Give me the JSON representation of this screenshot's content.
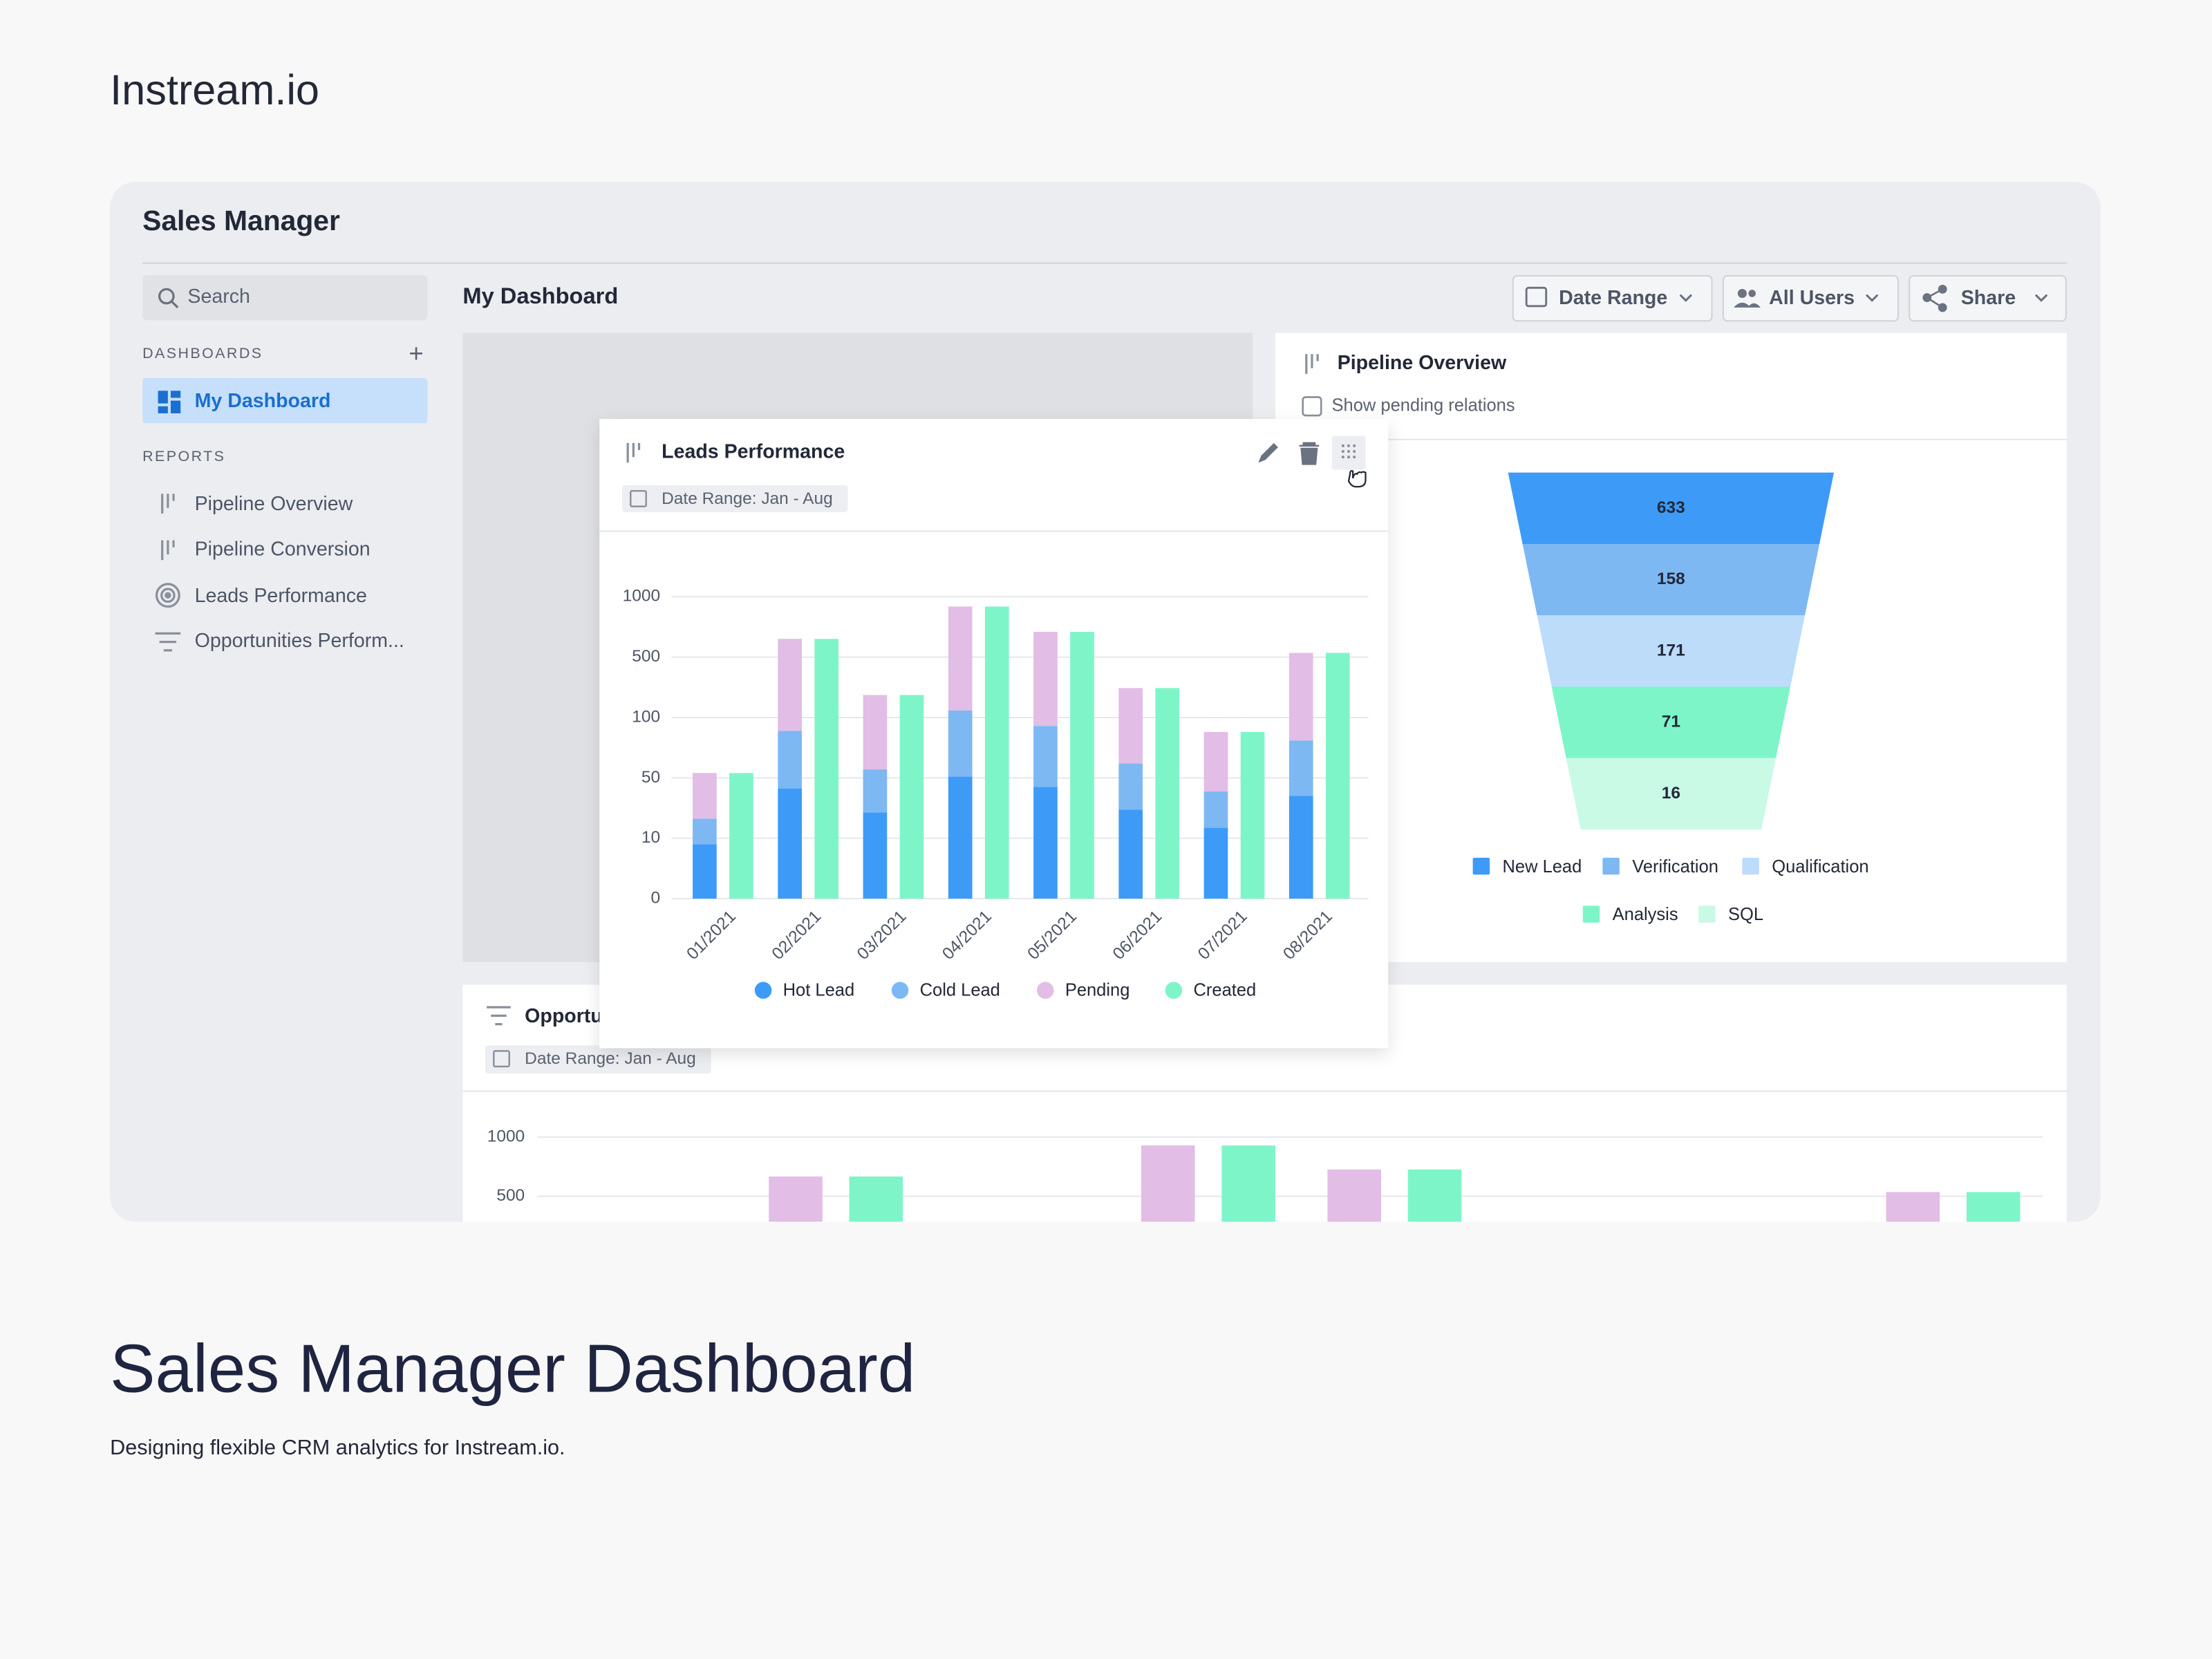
{
  "brand": "Instream.io",
  "app": {
    "title": "Sales Manager",
    "search": "Search",
    "dashboards_heading": "DASHBOARDS",
    "dashboards": [
      "My Dashboard"
    ],
    "reports_heading": "REPORTS",
    "reports": [
      "Pipeline Overview",
      "Pipeline Conversion",
      "Leads Performance",
      "Opportunities Perform..."
    ],
    "page_title": "My Dashboard",
    "filters": [
      "Date Range",
      "All Users",
      "Share"
    ]
  },
  "pipeline": {
    "title": "Pipeline Overview",
    "checkbox": "Show pending relations",
    "chart_data": {
      "type": "funnel",
      "categories": [
        "New Lead",
        "Verification",
        "Qualification",
        "Analysis",
        "SQL"
      ],
      "values": [
        633,
        158,
        171,
        71,
        16
      ],
      "colors": [
        "#3d9bf7",
        "#7db8f3",
        "#bcdcf9",
        "#7ef5c8",
        "#c8fae6"
      ]
    }
  },
  "leads": {
    "title": "Leads Performance",
    "date_range": "Date Range: Jan - Aug",
    "chart_data": {
      "type": "bar",
      "categories": [
        "01/2021",
        "02/2021",
        "03/2021",
        "04/2021",
        "05/2021",
        "06/2021",
        "07/2021",
        "08/2021"
      ],
      "ylim": [
        0,
        1000
      ],
      "yticks": [
        0,
        10,
        50,
        100,
        500,
        1000
      ],
      "grid": true,
      "series": [
        {
          "name": "Hot Lead",
          "color": "#3d9bf7",
          "stack": "leads",
          "values": [
            9,
            43,
            27,
            51,
            44,
            29,
            17,
            38
          ]
        },
        {
          "name": "Cold Lead",
          "color": "#7db8f3",
          "stack": "leads",
          "values": [
            14,
            46,
            30,
            96,
            49,
            33,
            24,
            43
          ]
        },
        {
          "name": "Pending",
          "color": "#e2bde6",
          "stack": "leads",
          "values": [
            31,
            562,
            192,
            772,
            616,
            233,
            47,
            454
          ]
        },
        {
          "name": "Created",
          "color": "#7ef5c8",
          "stack": "created",
          "values": [
            54,
            651,
            249,
            919,
            709,
            295,
            88,
            535
          ]
        }
      ]
    }
  },
  "opportunities": {
    "title": "Opportu",
    "date_range": "Date Range: Jan - Aug",
    "chart_data": {
      "type": "bar",
      "categories": [
        null,
        null,
        null,
        null,
        null,
        null,
        null,
        null
      ],
      "ylim": [
        0,
        1000
      ],
      "yticks": [
        500,
        1000
      ],
      "grid": true,
      "series": [
        {
          "color": "#e2bde6",
          "values": [
            null,
            667,
            null,
            929,
            726,
            null,
            null,
            536
          ]
        },
        {
          "color": "#7ef5c8",
          "values": [
            null,
            667,
            null,
            929,
            726,
            null,
            null,
            536
          ]
        }
      ]
    }
  },
  "footer": {
    "title": "Sales Manager Dashboard",
    "subtitle": "Designing flexible CRM analytics for Instream.io."
  }
}
